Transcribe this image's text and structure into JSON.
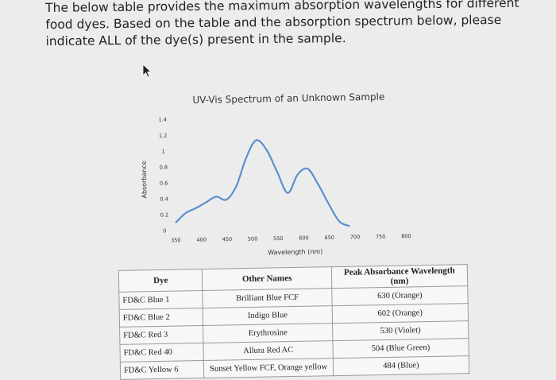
{
  "question": {
    "text": "The below table provides the maximum absorption wavelengths for different food dyes. Based on the table and the absorption spectrum below, please indicate ALL of the dye(s) present in the sample."
  },
  "chart_data": {
    "type": "line",
    "title": "UV-Vis Spectrum of an Unknown Sample",
    "xlabel": "Wavelength (nm)",
    "ylabel": "Absorbance",
    "x_ticks": [
      "350",
      "400",
      "450",
      "500",
      "550",
      "600",
      "650",
      "700",
      "750",
      "800"
    ],
    "y_ticks": [
      "0",
      "0.2",
      "0.4",
      "0.6",
      "0.8",
      "1",
      "1.2",
      "1.4"
    ],
    "xlim": [
      350,
      800
    ],
    "ylim": [
      0,
      1.4
    ],
    "grid": false,
    "series": [
      {
        "x": [
          350,
          370,
          390,
          410,
          430,
          450,
          470,
          490,
          510,
          530,
          550,
          570,
          590,
          610,
          630,
          650,
          670,
          690
        ],
        "y": [
          0.1,
          0.22,
          0.28,
          0.35,
          0.42,
          0.38,
          0.55,
          0.9,
          1.12,
          1.0,
          0.72,
          0.45,
          0.68,
          0.75,
          0.55,
          0.3,
          0.08,
          0.02
        ]
      }
    ]
  },
  "table": {
    "headers": [
      "Dye",
      "Other Names",
      "Peak Absorbance Wavelength (nm)"
    ],
    "rows": [
      [
        "FD&C Blue 1",
        "Brilliant Blue FCF",
        "630 (Orange)"
      ],
      [
        "FD&C Blue 2",
        "Indigo Blue",
        "602 (Orange)"
      ],
      [
        "FD&C Red 3",
        "Erythrosine",
        "530 (Violet)"
      ],
      [
        "FD&C Red 40",
        "Allura Red AC",
        "504 (Blue Green)"
      ],
      [
        "FD&C Yellow 6",
        "Sunset Yellow FCF, Orange yellow",
        "484 (Blue)"
      ]
    ]
  }
}
